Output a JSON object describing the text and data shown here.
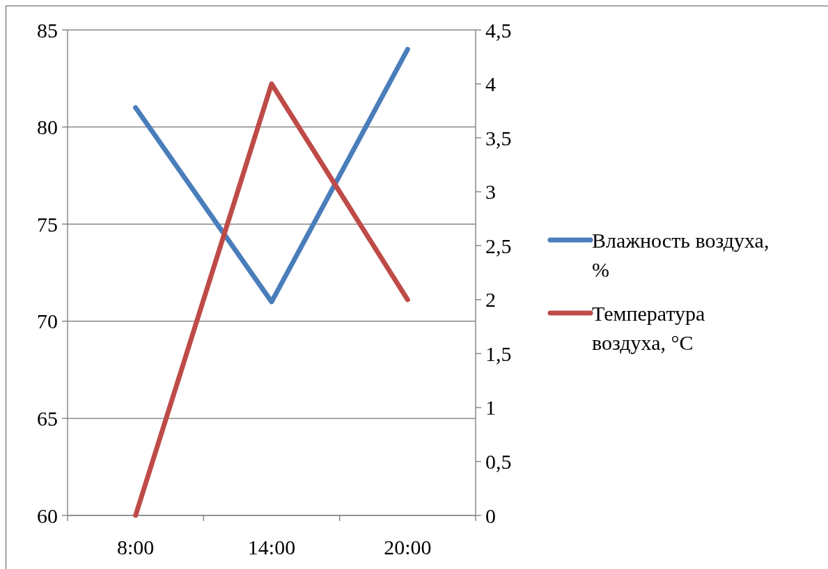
{
  "chart_data": {
    "type": "line",
    "categories": [
      "8:00",
      "14:00",
      "20:00"
    ],
    "series": [
      {
        "name": "Влажность воздуха, %",
        "color": "#4a7ebb",
        "values": [
          81,
          71,
          84
        ]
      },
      {
        "name": "Температура воздуха, °C",
        "color": "#be4b48",
        "values": [
          0,
          4,
          2
        ],
        "axis": "y2"
      }
    ],
    "ylim": [
      60,
      85
    ],
    "yticks": [
      60,
      65,
      70,
      75,
      80,
      85
    ],
    "y2lim": [
      0,
      4.5
    ],
    "y2ticks": [
      0,
      {
        "value": 0.5,
        "label": "0,5"
      },
      1,
      {
        "value": 1.5,
        "label": "1,5"
      },
      2,
      {
        "value": 2.5,
        "label": "2,5"
      },
      3,
      {
        "value": 3.5,
        "label": "3,5"
      },
      4,
      {
        "value": 4.5,
        "label": "4,5"
      }
    ],
    "grid": "y",
    "legend": "right",
    "marker": "none",
    "line_style": "solid"
  }
}
